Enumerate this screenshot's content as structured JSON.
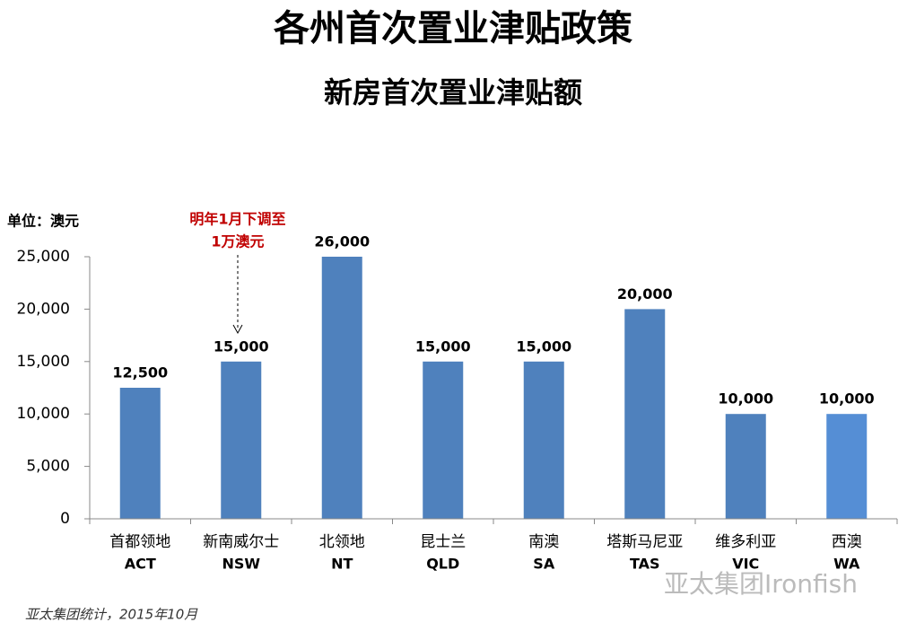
{
  "chart_data": {
    "type": "bar",
    "title": "各州首次置业津贴政策",
    "subtitle": "新房首次置业津贴额",
    "y_axis_label": "单位：澳元",
    "annotation": [
      "明年1月下调至",
      "1万澳元"
    ],
    "source": "亚太集团统计，2015年10月",
    "watermark": "亚太集团Ironfish",
    "categories": [
      "首都领地",
      "新南威尔士",
      "北领地",
      "昆士兰",
      "南澳",
      "塔斯马尼亚",
      "维多利亚",
      "西澳"
    ],
    "category_codes": [
      "ACT",
      "NSW",
      "NT",
      "QLD",
      "SA",
      "TAS",
      "VIC",
      "WA"
    ],
    "values": [
      12500,
      15000,
      26000,
      15000,
      15000,
      20000,
      10000,
      10000
    ],
    "value_labels": [
      "12,500",
      "15,000",
      "26,000",
      "15,000",
      "15,000",
      "20,000",
      "10,000",
      "10,000"
    ],
    "colors": [
      "#4f81bd",
      "#4f81bd",
      "#4f81bd",
      "#4f81bd",
      "#4f81bd",
      "#4f81bd",
      "#4f81bd",
      "#558ed5"
    ],
    "ylim": [
      0,
      25000
    ],
    "yticks": [
      0,
      {
        "value": 5000,
        "label": "5,000"
      },
      {
        "value": 10000,
        "label": "10,000"
      },
      {
        "value": 15000,
        "label": "15,000"
      },
      {
        "value": 20000,
        "label": "20,000"
      },
      {
        "value": 25000,
        "label": "25,000"
      }
    ],
    "grid": false
  }
}
